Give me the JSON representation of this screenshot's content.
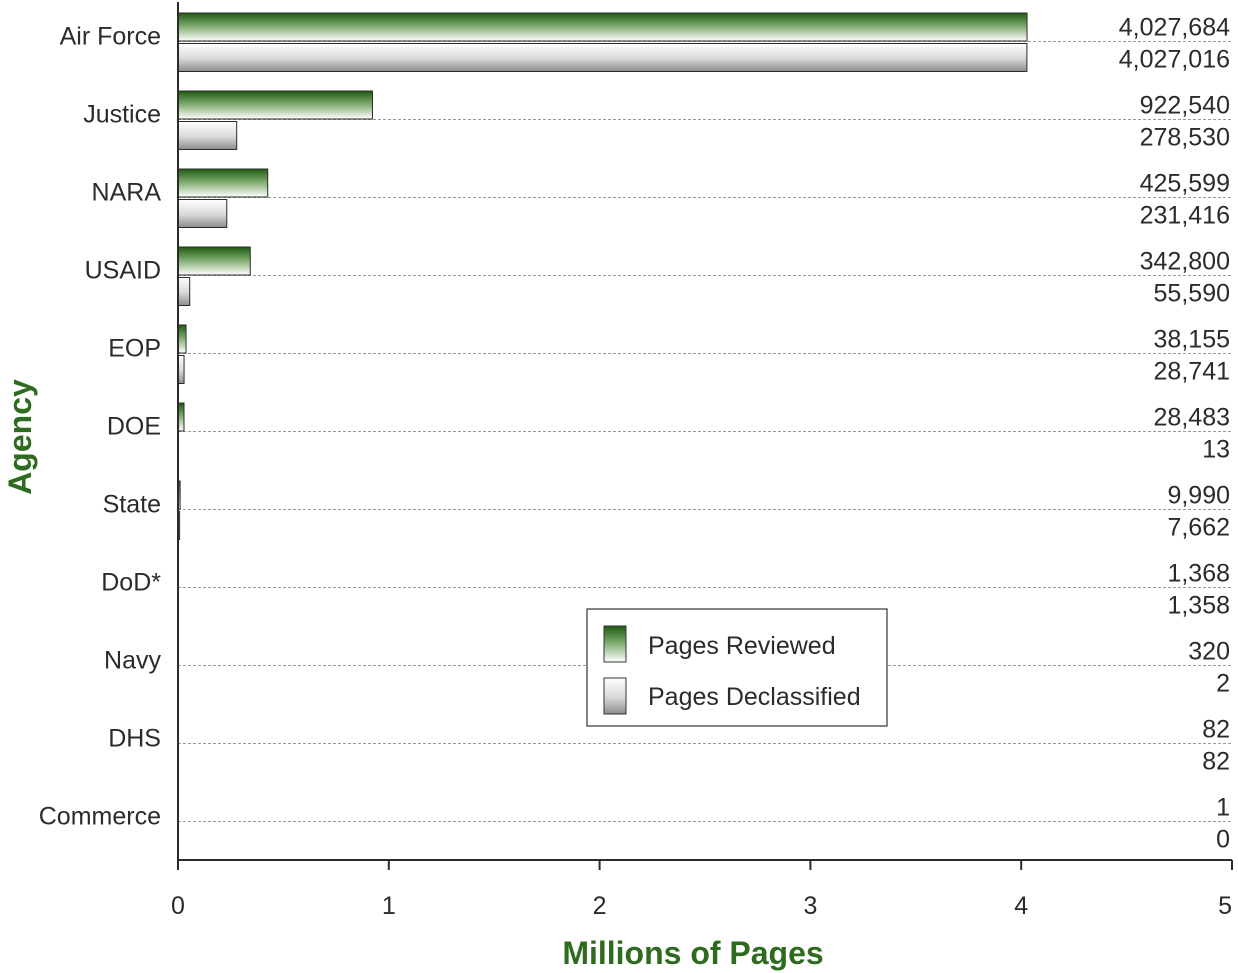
{
  "chart_data": {
    "type": "bar",
    "orientation": "horizontal",
    "categories": [
      "Air Force",
      "Justice",
      "NARA",
      "USAID",
      "EOP",
      "DOE",
      "State",
      "DoD*",
      "Navy",
      "DHS",
      "Commerce"
    ],
    "series": [
      {
        "name": "Pages Reviewed",
        "color": "#2e6b1f",
        "values": [
          4027684,
          922540,
          425599,
          342800,
          38155,
          28483,
          9990,
          1368,
          320,
          82,
          1
        ],
        "value_labels": [
          "4,027,684",
          "922,540",
          "425,599",
          "342,800",
          "38,155",
          "28,483",
          "9,990",
          "1,368",
          "320",
          "82",
          "1"
        ]
      },
      {
        "name": "Pages Declassified",
        "color": "#9a9a9a",
        "values": [
          4027016,
          278530,
          231416,
          55590,
          28741,
          13,
          7662,
          1358,
          2,
          82,
          0
        ],
        "value_labels": [
          "4,027,016",
          "278,530",
          "231,416",
          "55,590",
          "28,741",
          "13",
          "7,662",
          "1,358",
          "2",
          "82",
          "0"
        ]
      }
    ],
    "xlabel": "Millions of Pages",
    "ylabel": "Agency",
    "xlim": [
      0,
      5
    ],
    "x_scale_divisor": 1000000,
    "x_ticks": [
      0,
      1,
      2,
      3,
      4,
      5
    ],
    "x_tick_labels": [
      "0",
      "1",
      "2",
      "3",
      "4",
      "5"
    ],
    "grid": "dashed horizontal lines per category",
    "legend_position": "lower-center-right"
  }
}
